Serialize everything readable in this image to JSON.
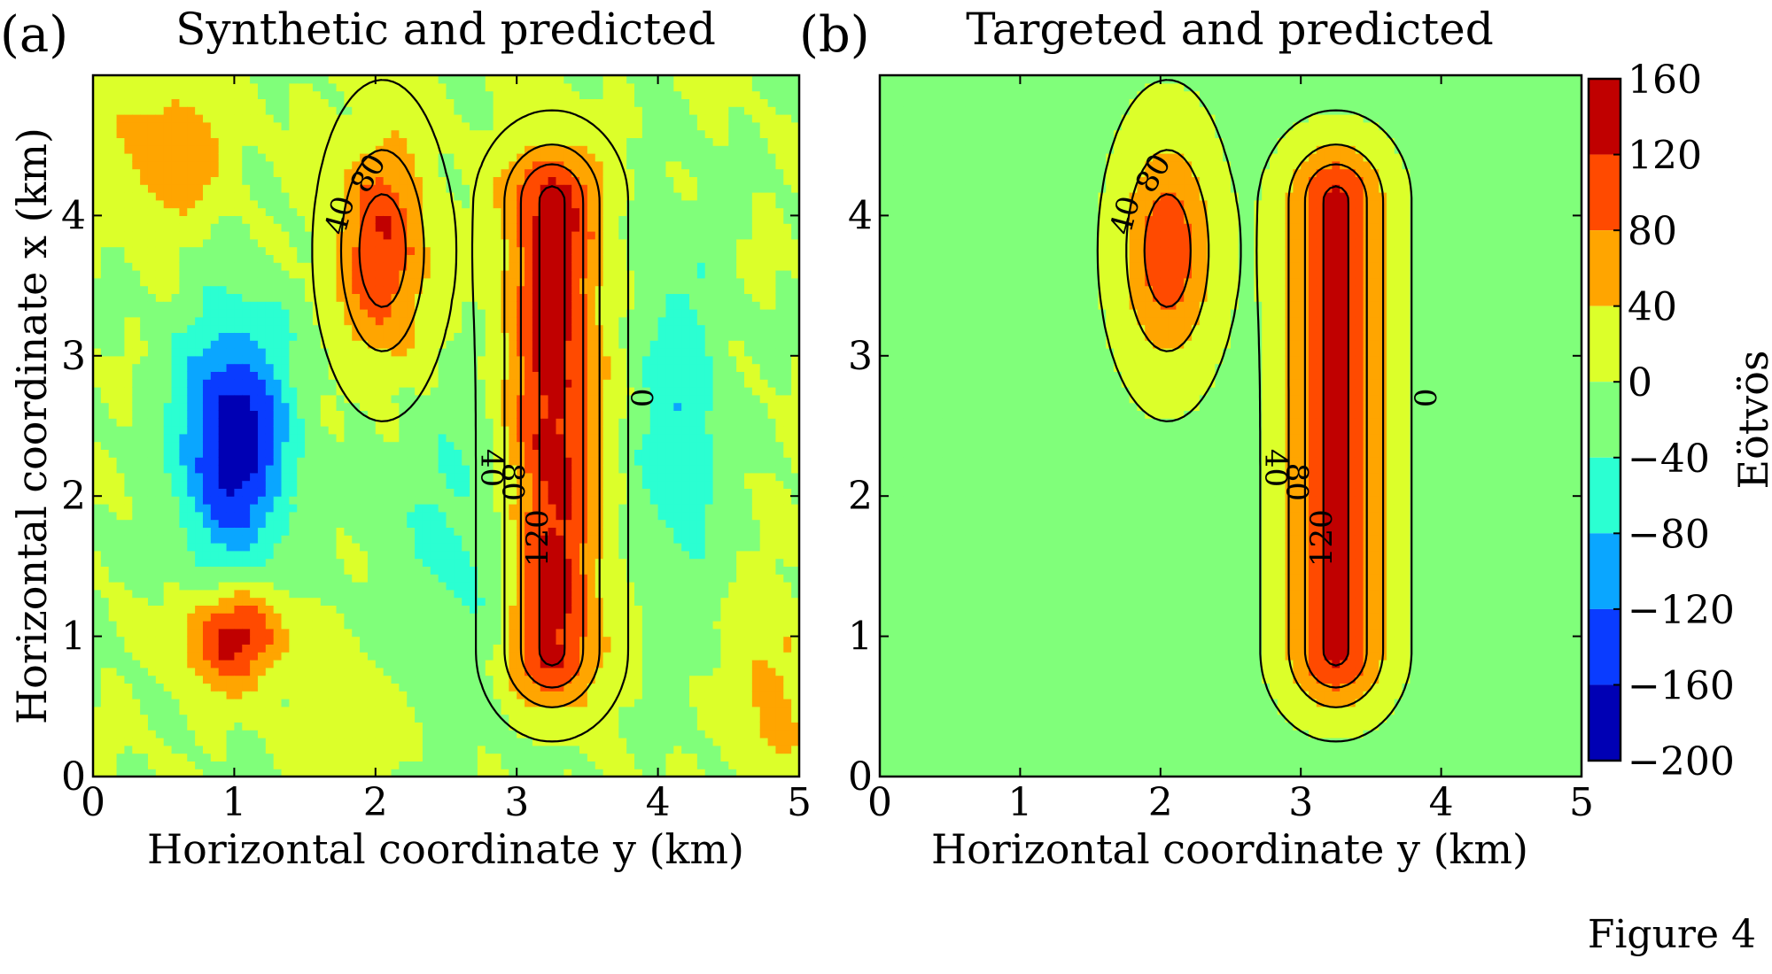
{
  "figure_label": "Figure 4",
  "chart_data": [
    {
      "type": "heatmap",
      "panel_label": "(a)",
      "title": "Synthetic and predicted",
      "xlabel": "Horizontal coordinate y (km)",
      "ylabel": "Horizontal coordinate x (km)",
      "xlim": [
        0,
        5
      ],
      "ylim": [
        0,
        5
      ],
      "xticks": [
        0,
        1,
        2,
        3,
        4,
        5
      ],
      "yticks": [
        0,
        1,
        2,
        3,
        4
      ],
      "grid": false,
      "contour_levels": [
        0,
        40,
        80,
        120
      ],
      "contour_labels": [
        "0",
        "40",
        "80",
        "120",
        "40",
        "80"
      ],
      "sources": [
        {
          "kind": "plume",
          "x_km": 4.0,
          "y_km": 2.0,
          "amplitude": 118
        },
        {
          "kind": "ridge",
          "x_from_km": 0.9,
          "x_to_km": 4.1,
          "y_km": 3.25,
          "amplitude": 140
        }
      ],
      "noise_features": [
        {
          "kind": "low",
          "x_km": 2.4,
          "y_km": 1.0,
          "amplitude": -190
        },
        {
          "kind": "high",
          "x_km": 1.0,
          "y_km": 1.0,
          "amplitude": 150
        },
        {
          "kind": "high",
          "x_km": 4.5,
          "y_km": 0.3,
          "amplitude": 55
        }
      ]
    },
    {
      "type": "heatmap",
      "panel_label": "(b)",
      "title": "Targeted and predicted",
      "xlabel": "Horizontal coordinate y (km)",
      "ylabel": "",
      "xlim": [
        0,
        5
      ],
      "ylim": [
        0,
        5
      ],
      "xticks": [
        0,
        1,
        2,
        3,
        4,
        5
      ],
      "yticks": [
        0,
        1,
        2,
        3,
        4
      ],
      "grid": false,
      "contour_levels": [
        0,
        40,
        80,
        120
      ],
      "contour_labels": [
        "0",
        "40",
        "80",
        "120",
        "40",
        "80"
      ],
      "sources": [
        {
          "kind": "plume",
          "x_km": 4.0,
          "y_km": 2.0,
          "amplitude": 118
        },
        {
          "kind": "ridge",
          "x_from_km": 0.9,
          "x_to_km": 4.1,
          "y_km": 3.25,
          "amplitude": 140
        }
      ]
    }
  ],
  "colorbar": {
    "label": "Eötvös",
    "ticks": [
      "160",
      "120",
      "80",
      "40",
      "0",
      "−40",
      "−80",
      "−120",
      "−160",
      "−200"
    ],
    "bands": [
      {
        "from": 120,
        "to": 160,
        "color": "#c00000"
      },
      {
        "from": 80,
        "to": 120,
        "color": "#ff4a00"
      },
      {
        "from": 40,
        "to": 80,
        "color": "#ffa500"
      },
      {
        "from": 0,
        "to": 40,
        "color": "#dcff2a"
      },
      {
        "from": -40,
        "to": 0,
        "color": "#80ff7a"
      },
      {
        "from": -80,
        "to": -40,
        "color": "#2bffd2"
      },
      {
        "from": -120,
        "to": -80,
        "color": "#0aa6ff"
      },
      {
        "from": -160,
        "to": -120,
        "color": "#0a3cff"
      },
      {
        "from": -200,
        "to": -160,
        "color": "#0000b4"
      }
    ]
  }
}
